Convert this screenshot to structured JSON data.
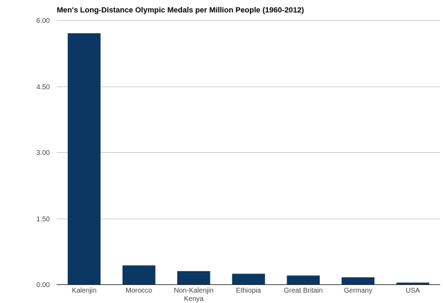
{
  "chart_data": {
    "type": "bar",
    "title": "Men's Long-Distance Olympic Medals per Million People (1960-2012)",
    "xlabel": "",
    "ylabel": "",
    "categories": [
      "Kalenjin",
      "Morocco",
      "Non-Kalenjin Kenya",
      "Ethiopia",
      "Great Britain",
      "Germany",
      "USA"
    ],
    "category_lines": [
      [
        "Kalenjin"
      ],
      [
        "Morocco"
      ],
      [
        "Non-Kalenjin",
        "Kenya"
      ],
      [
        "Ethiopia"
      ],
      [
        "Great Britain"
      ],
      [
        "Germany"
      ],
      [
        "USA"
      ]
    ],
    "values": [
      5.7,
      0.43,
      0.3,
      0.24,
      0.2,
      0.16,
      0.04
    ],
    "ylim": [
      0,
      6
    ],
    "yticks": [
      "0.00",
      "1.50",
      "3.00",
      "4.50",
      "6.00"
    ],
    "ytick_values": [
      0,
      1.5,
      3,
      4.5,
      6
    ],
    "grid": true,
    "legend": "none",
    "bar_color": "#0b3763"
  }
}
